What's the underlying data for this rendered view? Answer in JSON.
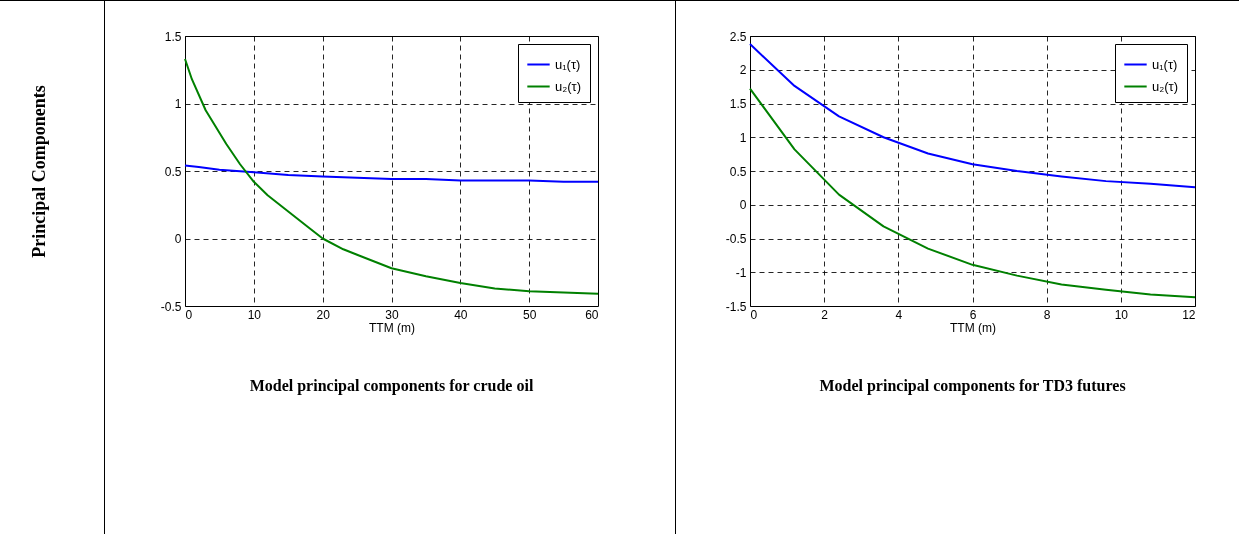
{
  "chart_data": [
    {
      "type": "line",
      "ylabel": "Principal Components",
      "xlabel": "TTM (m)",
      "title": "Model principal components for crude oil",
      "xlim": [
        0,
        60
      ],
      "xticks": [
        0,
        10,
        20,
        30,
        40,
        50,
        60
      ],
      "ylim": [
        -0.5,
        1.5
      ],
      "yticks": [
        -0.5,
        0,
        0.5,
        1,
        1.5
      ],
      "grid": true,
      "line_style": "solid",
      "legend": "top right",
      "series": [
        {
          "name": "u₁(τ)",
          "color": "#0000ff",
          "x": [
            0,
            2,
            5,
            10,
            15,
            20,
            25,
            30,
            35,
            40,
            50,
            55,
            60
          ],
          "values": [
            0.54,
            0.53,
            0.51,
            0.49,
            0.47,
            0.46,
            0.45,
            0.44,
            0.44,
            0.43,
            0.43,
            0.42,
            0.42
          ]
        },
        {
          "name": "u₂(τ)",
          "color": "#008000",
          "x": [
            0,
            1,
            3,
            6,
            8,
            10,
            12,
            15,
            18,
            20,
            23,
            25,
            30,
            35,
            40,
            45,
            50,
            55,
            60
          ],
          "values": [
            1.33,
            1.18,
            0.95,
            0.7,
            0.55,
            0.42,
            0.32,
            0.2,
            0.08,
            0,
            -0.08,
            -0.12,
            -0.22,
            -0.28,
            -0.33,
            -0.37,
            -0.39,
            -0.4,
            -0.41
          ]
        }
      ]
    },
    {
      "type": "line",
      "xlabel": "TTM (m)",
      "title": "Model principal components for TD3 futures",
      "xlim": [
        0,
        12
      ],
      "xticks": [
        0,
        2,
        4,
        6,
        8,
        10,
        12
      ],
      "ylim": [
        -1.5,
        2.5
      ],
      "yticks": [
        -1.5,
        -1,
        -0.5,
        0,
        0.5,
        1,
        1.5,
        2,
        2.5
      ],
      "grid": true,
      "line_style": "solid",
      "legend": "top right",
      "series": [
        {
          "name": "u₁(τ)",
          "color": "#0000ff",
          "x": [
            0,
            1.2,
            2.4,
            3.6,
            4.8,
            6,
            7.2,
            8.4,
            9.6,
            10.8,
            12
          ],
          "values": [
            2.38,
            1.76,
            1.31,
            1,
            0.76,
            0.6,
            0.5,
            0.42,
            0.35,
            0.31,
            0.26
          ]
        },
        {
          "name": "u₂(τ)",
          "color": "#008000",
          "x": [
            0,
            1.2,
            2.4,
            3.6,
            4.8,
            6,
            7.2,
            8.4,
            9.6,
            10.8,
            12
          ],
          "values": [
            1.72,
            0.82,
            0.15,
            -0.32,
            -0.65,
            -0.89,
            -1.05,
            -1.18,
            -1.26,
            -1.33,
            -1.37
          ]
        }
      ]
    }
  ]
}
